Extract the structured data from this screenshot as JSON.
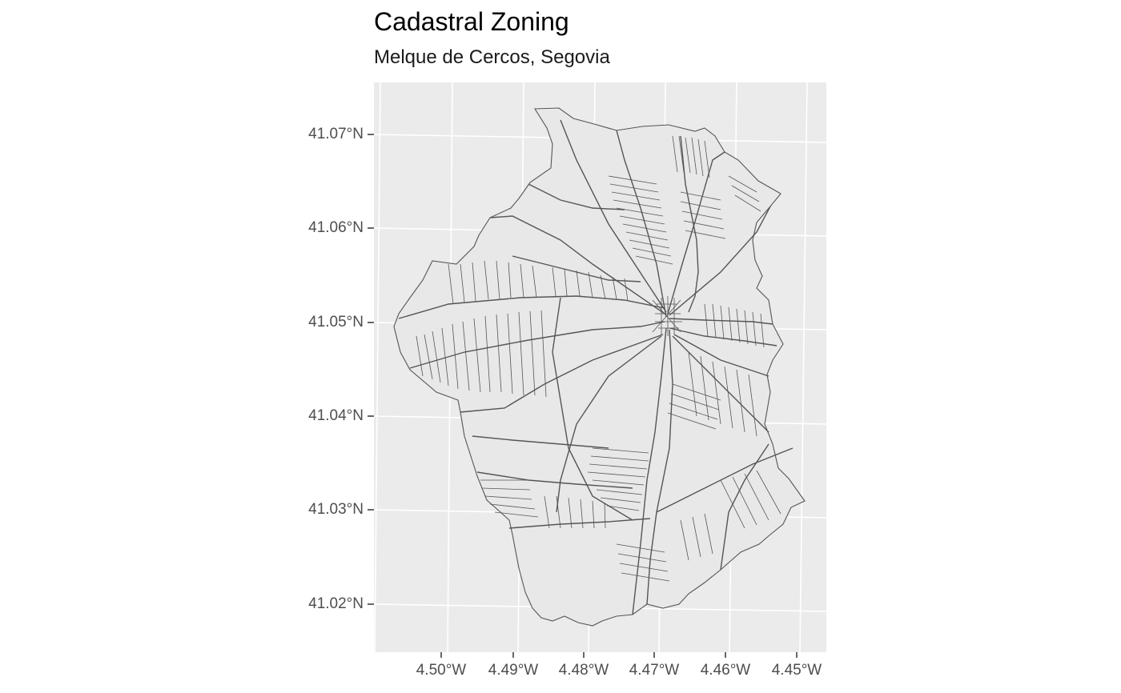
{
  "map": {
    "title": "Cadastral Zoning",
    "subtitle": "Melque de Cercos, Segovia",
    "panel_background": "#ebebeb",
    "grid_color": "#ffffff",
    "parcel_fill": "#e8e8e8",
    "parcel_stroke": "#555555",
    "x_ticks": [
      "4.50°W",
      "4.49°W",
      "4.48°W",
      "4.47°W",
      "4.46°W",
      "4.45°W"
    ],
    "y_ticks": [
      "41.07°N",
      "41.06°N",
      "41.05°N",
      "41.04°N",
      "41.03°N",
      "41.02°N"
    ]
  }
}
